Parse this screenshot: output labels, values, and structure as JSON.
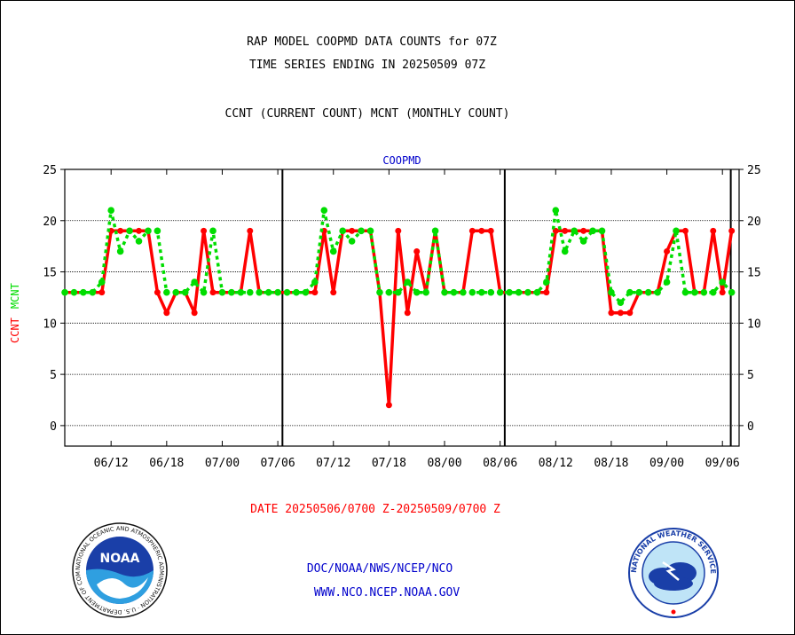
{
  "titles": {
    "line1": "RAP MODEL COOPMD DATA COUNTS for 07Z",
    "line2": "TIME SERIES ENDING IN 20250509 07Z",
    "line3": "CCNT (CURRENT COUNT) MCNT (MONTHLY COUNT)"
  },
  "footer": {
    "date_range": "DATE 20250506/0700 Z-20250509/0700 Z",
    "org": "DOC/NOAA/NWS/NCEP/NCO",
    "url": "WWW.NCO.NCEP.NOAA.GOV"
  },
  "logos": {
    "noaa_text": "NOAA",
    "noaa_ring": "NATIONAL OCEANIC AND ATMOSPHERIC ADMINISTRATION · U.S. DEPARTMENT OF COMMERCE",
    "nws_ring": "NATIONAL WEATHER SERVICE"
  },
  "colors": {
    "ccnt": "#ff0000",
    "mcnt": "#00dd00",
    "panel_label": "#0000cc",
    "date_text": "#ff0000",
    "link_text": "#0000cc"
  },
  "chart_data": {
    "type": "line",
    "panel_label": "COOPMD",
    "ylabel_parts": [
      "CCNT",
      "MCNT"
    ],
    "ylim": [
      -2,
      25
    ],
    "yticks": [
      0,
      5,
      10,
      15,
      20,
      25
    ],
    "grid": true,
    "x_tick_labels": [
      "06/12",
      "06/18",
      "07/00",
      "07/06",
      "07/12",
      "07/18",
      "08/00",
      "08/06",
      "08/12",
      "08/18",
      "09/00",
      "09/06"
    ],
    "x_tick_hours": [
      5,
      11,
      17,
      23,
      29,
      35,
      41,
      47,
      53,
      59,
      65,
      71
    ],
    "xlim_hours": [
      0,
      72.8
    ],
    "day_boundaries_hours": [
      23.5,
      47.5,
      71.9
    ],
    "series": [
      {
        "name": "CCNT",
        "x_hours": [
          0,
          1,
          2,
          3,
          4,
          5,
          6,
          7,
          8,
          9,
          10,
          11,
          12,
          13,
          14,
          15,
          16,
          17,
          18,
          19,
          20,
          21,
          22,
          23,
          24,
          25,
          26,
          27,
          28,
          29,
          30,
          31,
          32,
          33,
          34,
          35,
          36,
          37,
          38,
          39,
          40,
          41,
          42,
          43,
          44,
          45,
          46,
          47,
          48,
          49,
          50,
          51,
          52,
          53,
          54,
          55,
          56,
          57,
          58,
          59,
          60,
          61,
          62,
          63,
          64,
          65,
          66,
          67,
          68,
          69,
          70,
          71,
          72
        ],
        "values": [
          13,
          13,
          13,
          13,
          13,
          19,
          19,
          19,
          19,
          19,
          13,
          11,
          13,
          13,
          11,
          19,
          13,
          13,
          13,
          13,
          19,
          13,
          13,
          13,
          13,
          13,
          13,
          13,
          19,
          13,
          19,
          19,
          19,
          19,
          13,
          2,
          19,
          11,
          17,
          13,
          19,
          13,
          13,
          13,
          19,
          19,
          19,
          13,
          13,
          13,
          13,
          13,
          13,
          19,
          19,
          19,
          19,
          19,
          19,
          11,
          11,
          11,
          13,
          13,
          13,
          17,
          19,
          19,
          13,
          13,
          19,
          13,
          19
        ]
      },
      {
        "name": "MCNT",
        "x_hours": [
          0,
          1,
          2,
          3,
          4,
          5,
          6,
          7,
          8,
          9,
          10,
          11,
          12,
          13,
          14,
          15,
          16,
          17,
          18,
          19,
          20,
          21,
          22,
          23,
          24,
          25,
          26,
          27,
          28,
          29,
          30,
          31,
          32,
          33,
          34,
          35,
          36,
          37,
          38,
          39,
          40,
          41,
          42,
          43,
          44,
          45,
          46,
          47,
          48,
          49,
          50,
          51,
          52,
          53,
          54,
          55,
          56,
          57,
          58,
          59,
          60,
          61,
          62,
          63,
          64,
          65,
          66,
          67,
          68,
          69,
          70,
          71,
          72
        ],
        "values": [
          13,
          13,
          13,
          13,
          14,
          21,
          17,
          19,
          18,
          19,
          19,
          13,
          13,
          13,
          14,
          13,
          19,
          13,
          13,
          13,
          13,
          13,
          13,
          13,
          13,
          13,
          13,
          14,
          21,
          17,
          19,
          18,
          19,
          19,
          13,
          13,
          13,
          14,
          13,
          13,
          19,
          13,
          13,
          13,
          13,
          13,
          13,
          13,
          13,
          13,
          13,
          13,
          14,
          21,
          17,
          19,
          18,
          19,
          19,
          13,
          12,
          13,
          13,
          13,
          13,
          14,
          19,
          13,
          13,
          13,
          13,
          14,
          13
        ]
      }
    ]
  }
}
